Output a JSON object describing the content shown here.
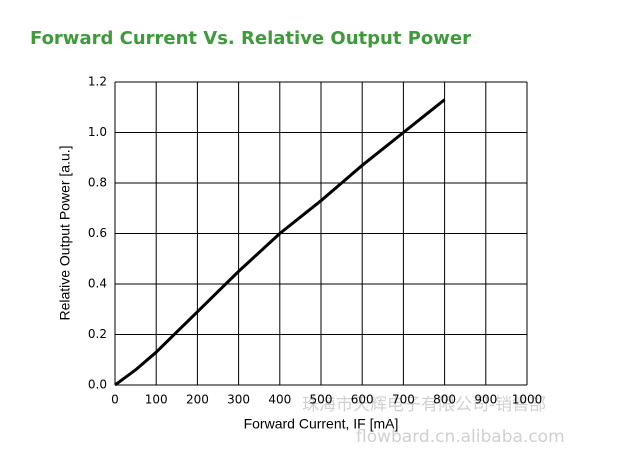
{
  "chart_data": {
    "type": "line",
    "title": "Forward Current Vs. Relative Output Power",
    "xlabel": "Forward Current, IF [mA]",
    "ylabel": "Relative Output Power [a.u.]",
    "x": [
      0,
      50,
      100,
      150,
      200,
      250,
      300,
      350,
      400,
      450,
      500,
      550,
      600,
      650,
      700,
      750,
      800
    ],
    "values": [
      0,
      0.06,
      0.13,
      0.21,
      0.29,
      0.37,
      0.45,
      0.525,
      0.6,
      0.665,
      0.73,
      0.8,
      0.87,
      0.935,
      1.0,
      1.065,
      1.13
    ],
    "color": "#000000",
    "xlim": [
      0,
      1000
    ],
    "xticks": [
      0,
      100,
      200,
      300,
      400,
      500,
      600,
      700,
      800,
      900,
      1000
    ],
    "ylim": [
      0,
      1.2
    ],
    "yticks": [
      {
        "value": 0,
        "label": "0.0"
      },
      0.2,
      0.4,
      0.6,
      0.8,
      {
        "value": 1,
        "label": "1.0"
      },
      1.2
    ],
    "grid": true
  },
  "watermark": {
    "company": "珠海市天辉电子有限公司-销售部",
    "site": "flowbard.cn.alibaba.com"
  }
}
